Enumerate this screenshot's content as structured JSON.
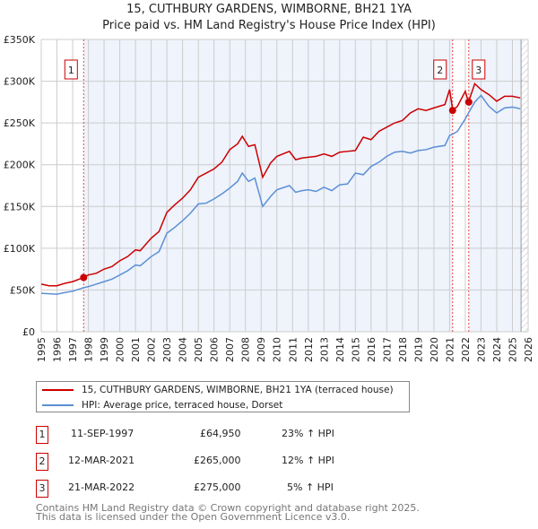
{
  "title": "15, CUTHBURY GARDENS, WIMBORNE, BH21 1YA",
  "subtitle": "Price paid vs. HM Land Registry's House Price Index (HPI)",
  "colors": {
    "property": "#cc0000",
    "hpi": "#5b8fd4",
    "shade": "#eef3fc",
    "grid": "#cccccc"
  },
  "chart_data": {
    "type": "line",
    "title": "15, CUTHBURY GARDENS, WIMBORNE, BH21 1YA",
    "xlim": [
      1995,
      2026
    ],
    "ylim": [
      0,
      350000
    ],
    "yticks": [
      0,
      50000,
      100000,
      150000,
      200000,
      250000,
      300000,
      350000
    ],
    "ytick_labels": [
      "£0",
      "£50K",
      "£100K",
      "£150K",
      "£200K",
      "£250K",
      "£300K",
      "£350K"
    ],
    "xticks": [
      "1995",
      "1996",
      "1997",
      "1998",
      "1999",
      "2000",
      "2001",
      "2002",
      "2003",
      "2004",
      "2005",
      "2006",
      "2007",
      "2008",
      "2009",
      "2010",
      "2011",
      "2012",
      "2013",
      "2014",
      "2015",
      "2016",
      "2017",
      "2018",
      "2019",
      "2020",
      "2021",
      "2022",
      "2023",
      "2024",
      "2025",
      "2026"
    ],
    "grid": true,
    "series": [
      {
        "name": "15, CUTHBURY GARDENS, WIMBORNE, BH21 1YA (terraced house)",
        "x": [
          1995,
          1995.5,
          1996,
          1996.5,
          1997,
          1997.7,
          1998,
          1998.5,
          1999,
          1999.5,
          2000,
          2000.5,
          2001,
          2001.3,
          2002,
          2002.5,
          2003,
          2003.5,
          2004,
          2004.5,
          2005,
          2005.5,
          2006,
          2006.5,
          2007,
          2007.5,
          2007.8,
          2008.2,
          2008.6,
          2009.1,
          2009.6,
          2010,
          2010.8,
          2011.2,
          2011.6,
          2012,
          2012.5,
          2013,
          2013.5,
          2014,
          2014.5,
          2015,
          2015.5,
          2016,
          2016.5,
          2017,
          2017.5,
          2018,
          2018.5,
          2019,
          2019.5,
          2020,
          2020.7,
          2021,
          2021.2,
          2021.5,
          2022,
          2022.2,
          2022.6,
          2023,
          2023.5,
          2024,
          2024.5,
          2025,
          2025.5
        ],
        "values": [
          57000,
          55000,
          55000,
          58000,
          60000,
          65000,
          68000,
          70000,
          75000,
          78000,
          85000,
          90000,
          98000,
          97000,
          112000,
          120000,
          143000,
          152000,
          160000,
          170000,
          185000,
          190000,
          195000,
          203000,
          218000,
          225000,
          234000,
          222000,
          224000,
          185000,
          202000,
          210000,
          216000,
          206000,
          208000,
          209000,
          210000,
          213000,
          210000,
          215000,
          216000,
          217000,
          233000,
          230000,
          240000,
          245000,
          250000,
          253000,
          262000,
          267000,
          265000,
          268000,
          272000,
          290000,
          265000,
          270000,
          288000,
          275000,
          297000,
          290000,
          284000,
          276000,
          282000,
          282000,
          280000
        ]
      },
      {
        "name": "HPI: Average price, terraced house, Dorset",
        "x": [
          1995,
          1995.5,
          1996,
          1996.5,
          1997,
          1997.7,
          1998,
          1998.5,
          1999,
          1999.5,
          2000,
          2000.5,
          2001,
          2001.3,
          2002,
          2002.5,
          2003,
          2003.5,
          2004,
          2004.5,
          2005,
          2005.5,
          2006,
          2006.5,
          2007,
          2007.5,
          2007.8,
          2008.2,
          2008.6,
          2009.1,
          2009.6,
          2010,
          2010.8,
          2011.2,
          2011.6,
          2012,
          2012.5,
          2013,
          2013.5,
          2014,
          2014.5,
          2015,
          2015.5,
          2016,
          2016.5,
          2017,
          2017.5,
          2018,
          2018.5,
          2019,
          2019.5,
          2020,
          2020.7,
          2021,
          2021.2,
          2021.5,
          2022,
          2022.2,
          2022.6,
          2023,
          2023.5,
          2024,
          2024.5,
          2025,
          2025.5
        ],
        "values": [
          46000,
          45500,
          45000,
          47000,
          48500,
          52800,
          54000,
          57000,
          60000,
          63000,
          68000,
          73000,
          80000,
          79000,
          90000,
          96000,
          118000,
          125000,
          133000,
          142000,
          153000,
          154000,
          159000,
          165000,
          172000,
          180000,
          190000,
          180000,
          184000,
          150000,
          162000,
          170000,
          175000,
          167000,
          169000,
          170000,
          168000,
          173000,
          169000,
          176000,
          177000,
          190000,
          188000,
          198000,
          203000,
          210000,
          215000,
          216000,
          214000,
          217000,
          218000,
          221000,
          223000,
          235000,
          236600,
          240000,
          255000,
          261900,
          275000,
          283000,
          270000,
          262000,
          268000,
          269000,
          267000
        ]
      }
    ],
    "sales": [
      {
        "id": "1",
        "x": 1997.7,
        "value": 64950
      },
      {
        "id": "2",
        "x": 2021.19,
        "value": 265000
      },
      {
        "id": "3",
        "x": 2022.22,
        "value": 275000
      }
    ]
  },
  "legend": {
    "property": "15, CUTHBURY GARDENS, WIMBORNE, BH21 1YA (terraced house)",
    "hpi": "HPI: Average price, terraced house, Dorset"
  },
  "transactions": [
    {
      "id": "1",
      "date": "11-SEP-1997",
      "price": "£64,950",
      "hpi": "23% ↑ HPI"
    },
    {
      "id": "2",
      "date": "12-MAR-2021",
      "price": "£265,000",
      "hpi": "12% ↑ HPI"
    },
    {
      "id": "3",
      "date": "21-MAR-2022",
      "price": "£275,000",
      "hpi": "5% ↑ HPI"
    }
  ],
  "footer": {
    "line1": "Contains HM Land Registry data © Crown copyright and database right 2025.",
    "line2": "This data is licensed under the Open Government Licence v3.0."
  }
}
